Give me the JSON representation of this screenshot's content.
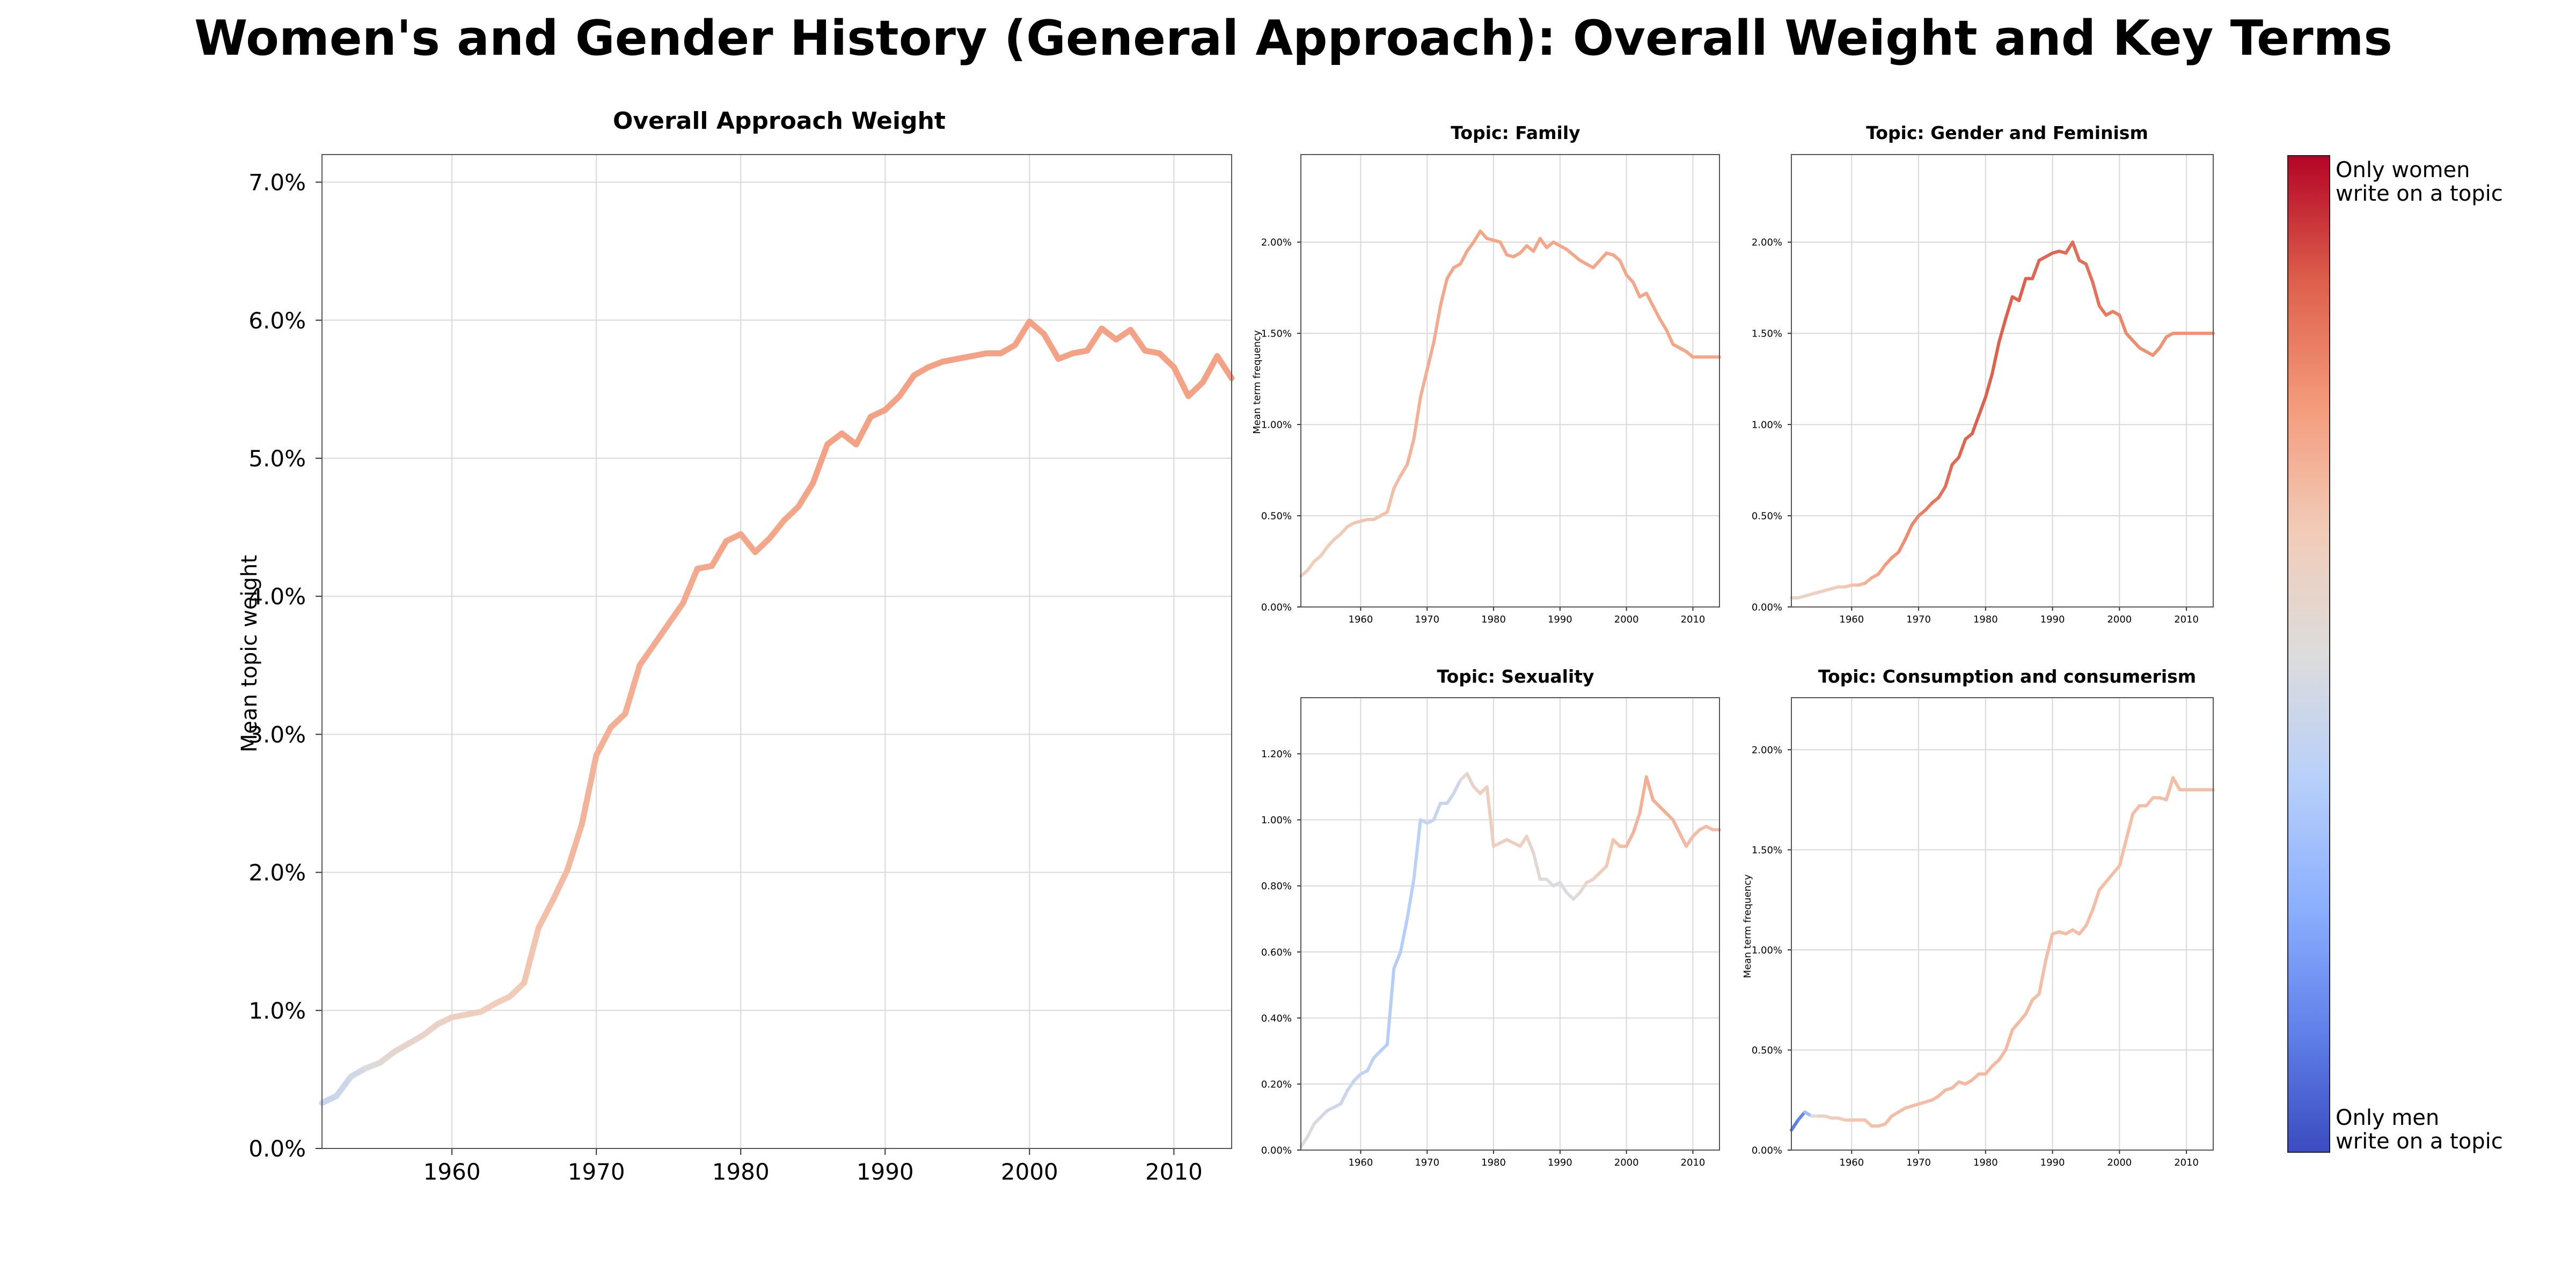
{
  "figure_title": "Women's and Gender History (General Approach): Overall Weight and Key Terms",
  "colorbar": {
    "top_label_line1": "Only women",
    "top_label_line2": "write on a topic",
    "bottom_label_line1": "Only men",
    "bottom_label_line2": "write on a topic",
    "colors": [
      "#b40426",
      "#dd5f4b",
      "#f49a7b",
      "#f2cbb7",
      "#dddcdc",
      "#b8d0f9",
      "#8db0fe",
      "#6282ea",
      "#3b4cc0"
    ]
  },
  "chart_data": [
    {
      "type": "line",
      "title": "Overall Approach Weight",
      "ylabel": "Mean topic weight",
      "xlabel": "",
      "xlim": [
        1951,
        2014
      ],
      "ylim": [
        0,
        7.2
      ],
      "xticks": [
        1960,
        1970,
        1980,
        1990,
        2000,
        2010
      ],
      "yticks": [
        {
          "v": 0,
          "label": "0.0%"
        },
        {
          "v": 1,
          "label": "1.0%"
        },
        {
          "v": 2,
          "label": "2.0%"
        },
        {
          "v": 3,
          "label": "3.0%"
        },
        {
          "v": 4,
          "label": "4.0%"
        },
        {
          "v": 5,
          "label": "5.0%"
        },
        {
          "v": 6,
          "label": "6.0%"
        },
        {
          "v": 7,
          "label": "7.0%"
        }
      ],
      "grid": true,
      "color_scale": [
        0,
        1
      ],
      "x": [
        1951,
        1952,
        1953,
        1954,
        1955,
        1956,
        1957,
        1958,
        1959,
        1960,
        1961,
        1962,
        1963,
        1964,
        1965,
        1966,
        1967,
        1968,
        1969,
        1970,
        1971,
        1972,
        1973,
        1974,
        1975,
        1976,
        1977,
        1978,
        1979,
        1980,
        1981,
        1982,
        1983,
        1984,
        1985,
        1986,
        1987,
        1988,
        1989,
        1990,
        1991,
        1992,
        1993,
        1994,
        1995,
        1996,
        1997,
        1998,
        1999,
        2000,
        2001,
        2002,
        2003,
        2004,
        2005,
        2006,
        2007,
        2008,
        2009,
        2010,
        2011,
        2012,
        2013,
        2014
      ],
      "y": [
        0.33,
        0.38,
        0.52,
        0.58,
        0.62,
        0.7,
        0.76,
        0.82,
        0.9,
        0.95,
        0.97,
        0.99,
        1.05,
        1.1,
        1.2,
        1.6,
        1.8,
        2.02,
        2.35,
        2.85,
        3.05,
        3.15,
        3.5,
        3.65,
        3.8,
        3.95,
        4.2,
        4.22,
        4.4,
        4.45,
        4.32,
        4.42,
        4.55,
        4.65,
        4.82,
        5.1,
        5.18,
        5.1,
        5.3,
        5.35,
        5.45,
        5.6,
        5.66,
        5.7,
        5.72,
        5.74,
        5.76,
        5.76,
        5.82,
        5.99,
        5.9,
        5.72,
        5.76,
        5.78,
        5.94,
        5.86,
        5.93,
        5.78,
        5.76,
        5.66,
        5.45,
        5.55,
        5.74,
        5.58
      ],
      "c": [
        0.42,
        0.43,
        0.45,
        0.47,
        0.52,
        0.55,
        0.56,
        0.57,
        0.58,
        0.59,
        0.6,
        0.6,
        0.61,
        0.62,
        0.63,
        0.65,
        0.66,
        0.67,
        0.68,
        0.69,
        0.7,
        0.7,
        0.7,
        0.71,
        0.71,
        0.71,
        0.71,
        0.72,
        0.72,
        0.72,
        0.72,
        0.72,
        0.72,
        0.72,
        0.73,
        0.73,
        0.73,
        0.73,
        0.73,
        0.73,
        0.73,
        0.73,
        0.73,
        0.73,
        0.73,
        0.73,
        0.73,
        0.73,
        0.73,
        0.73,
        0.73,
        0.73,
        0.73,
        0.73,
        0.73,
        0.73,
        0.73,
        0.73,
        0.73,
        0.73,
        0.73,
        0.73,
        0.73,
        0.73
      ]
    },
    {
      "type": "line",
      "title": "Topic: Family",
      "ylabel": "Mean term frequency",
      "xlabel": "",
      "xlim": [
        1951,
        2014
      ],
      "ylim": [
        0,
        2.48
      ],
      "xticks": [
        1960,
        1970,
        1980,
        1990,
        2000,
        2010
      ],
      "yticks": [
        {
          "v": 0,
          "label": "0.00%"
        },
        {
          "v": 0.5,
          "label": "0.50%"
        },
        {
          "v": 1.0,
          "label": "1.00%"
        },
        {
          "v": 1.5,
          "label": "1.50%"
        },
        {
          "v": 2.0,
          "label": "2.00%"
        }
      ],
      "grid": true,
      "x": [
        1951,
        1952,
        1953,
        1954,
        1955,
        1956,
        1957,
        1958,
        1959,
        1960,
        1961,
        1962,
        1963,
        1964,
        1965,
        1966,
        1967,
        1968,
        1969,
        1970,
        1971,
        1972,
        1973,
        1974,
        1975,
        1976,
        1977,
        1978,
        1979,
        1980,
        1981,
        1982,
        1983,
        1984,
        1985,
        1986,
        1987,
        1988,
        1989,
        1990,
        1991,
        1992,
        1993,
        1994,
        1995,
        1996,
        1997,
        1998,
        1999,
        2000,
        2001,
        2002,
        2003,
        2004,
        2005,
        2006,
        2007,
        2008,
        2009,
        2010,
        2011,
        2012,
        2013,
        2014
      ],
      "y": [
        0.17,
        0.2,
        0.25,
        0.28,
        0.33,
        0.37,
        0.4,
        0.44,
        0.46,
        0.47,
        0.48,
        0.48,
        0.5,
        0.52,
        0.65,
        0.72,
        0.78,
        0.92,
        1.15,
        1.3,
        1.45,
        1.65,
        1.8,
        1.86,
        1.88,
        1.95,
        2.0,
        2.06,
        2.02,
        2.01,
        2.0,
        1.93,
        1.92,
        1.94,
        1.98,
        1.95,
        2.02,
        1.97,
        2.0,
        1.98,
        1.96,
        1.93,
        1.9,
        1.88,
        1.86,
        1.9,
        1.94,
        1.93,
        1.9,
        1.82,
        1.78,
        1.7,
        1.72,
        1.65,
        1.58,
        1.52,
        1.44,
        1.42,
        1.4,
        1.37,
        1.37,
        1.37,
        1.37,
        1.37
      ],
      "c": [
        0.6,
        0.6,
        0.61,
        0.61,
        0.62,
        0.62,
        0.63,
        0.63,
        0.63,
        0.64,
        0.64,
        0.64,
        0.65,
        0.65,
        0.66,
        0.67,
        0.68,
        0.69,
        0.7,
        0.7,
        0.71,
        0.71,
        0.72,
        0.72,
        0.72,
        0.72,
        0.72,
        0.72,
        0.72,
        0.72,
        0.72,
        0.72,
        0.72,
        0.72,
        0.72,
        0.72,
        0.72,
        0.72,
        0.72,
        0.72,
        0.72,
        0.72,
        0.72,
        0.72,
        0.72,
        0.72,
        0.72,
        0.72,
        0.72,
        0.72,
        0.72,
        0.72,
        0.72,
        0.72,
        0.72,
        0.72,
        0.72,
        0.72,
        0.72,
        0.72,
        0.72,
        0.72,
        0.72,
        0.72
      ]
    },
    {
      "type": "line",
      "title": "Topic: Gender and Feminism",
      "ylabel": "",
      "xlabel": "",
      "xlim": [
        1951,
        2014
      ],
      "ylim": [
        0,
        2.48
      ],
      "xticks": [
        1960,
        1970,
        1980,
        1990,
        2000,
        2010
      ],
      "yticks": [
        {
          "v": 0,
          "label": "0.00%"
        },
        {
          "v": 0.5,
          "label": "0.50%"
        },
        {
          "v": 1.0,
          "label": "1.00%"
        },
        {
          "v": 1.5,
          "label": "1.50%"
        },
        {
          "v": 2.0,
          "label": "2.00%"
        }
      ],
      "grid": true,
      "x": [
        1951,
        1952,
        1953,
        1954,
        1955,
        1956,
        1957,
        1958,
        1959,
        1960,
        1961,
        1962,
        1963,
        1964,
        1965,
        1966,
        1967,
        1968,
        1969,
        1970,
        1971,
        1972,
        1973,
        1974,
        1975,
        1976,
        1977,
        1978,
        1979,
        1980,
        1981,
        1982,
        1983,
        1984,
        1985,
        1986,
        1987,
        1988,
        1989,
        1990,
        1991,
        1992,
        1993,
        1994,
        1995,
        1996,
        1997,
        1998,
        1999,
        2000,
        2001,
        2002,
        2003,
        2004,
        2005,
        2006,
        2007,
        2008,
        2009,
        2010,
        2011,
        2012,
        2013,
        2014
      ],
      "y": [
        0.05,
        0.05,
        0.06,
        0.07,
        0.08,
        0.09,
        0.1,
        0.11,
        0.11,
        0.12,
        0.12,
        0.13,
        0.16,
        0.18,
        0.23,
        0.27,
        0.3,
        0.37,
        0.45,
        0.5,
        0.53,
        0.57,
        0.6,
        0.66,
        0.78,
        0.82,
        0.92,
        0.95,
        1.05,
        1.15,
        1.28,
        1.45,
        1.58,
        1.7,
        1.68,
        1.8,
        1.8,
        1.9,
        1.92,
        1.94,
        1.95,
        1.94,
        2.0,
        1.9,
        1.88,
        1.78,
        1.65,
        1.6,
        1.62,
        1.6,
        1.5,
        1.46,
        1.42,
        1.4,
        1.38,
        1.42,
        1.48,
        1.5,
        1.5,
        1.5,
        1.5,
        1.5,
        1.5,
        1.5
      ],
      "c": [
        0.55,
        0.56,
        0.57,
        0.58,
        0.59,
        0.6,
        0.61,
        0.62,
        0.63,
        0.64,
        0.66,
        0.68,
        0.7,
        0.72,
        0.74,
        0.76,
        0.77,
        0.78,
        0.79,
        0.8,
        0.81,
        0.82,
        0.83,
        0.84,
        0.85,
        0.86,
        0.86,
        0.87,
        0.87,
        0.87,
        0.87,
        0.87,
        0.87,
        0.87,
        0.87,
        0.87,
        0.86,
        0.86,
        0.86,
        0.86,
        0.86,
        0.85,
        0.85,
        0.85,
        0.84,
        0.84,
        0.83,
        0.82,
        0.81,
        0.8,
        0.79,
        0.78,
        0.78,
        0.77,
        0.77,
        0.77,
        0.77,
        0.77,
        0.77,
        0.77,
        0.77,
        0.77,
        0.77,
        0.77
      ]
    },
    {
      "type": "line",
      "title": "Topic: Sexuality",
      "ylabel": "",
      "xlabel": "",
      "xlim": [
        1951,
        2014
      ],
      "ylim": [
        0,
        1.37
      ],
      "xticks": [
        1960,
        1970,
        1980,
        1990,
        2000,
        2010
      ],
      "yticks": [
        {
          "v": 0,
          "label": "0.00%"
        },
        {
          "v": 0.2,
          "label": "0.20%"
        },
        {
          "v": 0.4,
          "label": "0.40%"
        },
        {
          "v": 0.6,
          "label": "0.60%"
        },
        {
          "v": 0.8,
          "label": "0.80%"
        },
        {
          "v": 1.0,
          "label": "1.00%"
        },
        {
          "v": 1.2,
          "label": "1.20%"
        }
      ],
      "grid": true,
      "x": [
        1951,
        1952,
        1953,
        1954,
        1955,
        1956,
        1957,
        1958,
        1959,
        1960,
        1961,
        1962,
        1963,
        1964,
        1965,
        1966,
        1967,
        1968,
        1969,
        1970,
        1971,
        1972,
        1973,
        1974,
        1975,
        1976,
        1977,
        1978,
        1979,
        1980,
        1981,
        1982,
        1983,
        1984,
        1985,
        1986,
        1987,
        1988,
        1989,
        1990,
        1991,
        1992,
        1993,
        1994,
        1995,
        1996,
        1997,
        1998,
        1999,
        2000,
        2001,
        2002,
        2003,
        2004,
        2005,
        2006,
        2007,
        2008,
        2009,
        2010,
        2011,
        2012,
        2013,
        2014
      ],
      "y": [
        0.01,
        0.04,
        0.08,
        0.1,
        0.12,
        0.13,
        0.14,
        0.18,
        0.21,
        0.23,
        0.24,
        0.28,
        0.3,
        0.32,
        0.55,
        0.6,
        0.7,
        0.82,
        1.0,
        0.99,
        1.0,
        1.05,
        1.05,
        1.08,
        1.12,
        1.14,
        1.1,
        1.08,
        1.1,
        0.92,
        0.93,
        0.94,
        0.93,
        0.92,
        0.95,
        0.9,
        0.82,
        0.82,
        0.8,
        0.81,
        0.78,
        0.76,
        0.78,
        0.81,
        0.82,
        0.84,
        0.86,
        0.94,
        0.92,
        0.92,
        0.96,
        1.02,
        1.13,
        1.06,
        1.04,
        1.02,
        1.0,
        0.96,
        0.92,
        0.95,
        0.97,
        0.98,
        0.97,
        0.97
      ],
      "c": [
        0.52,
        0.5,
        0.49,
        0.47,
        0.46,
        0.45,
        0.44,
        0.43,
        0.42,
        0.41,
        0.4,
        0.39,
        0.38,
        0.37,
        0.36,
        0.36,
        0.37,
        0.38,
        0.4,
        0.41,
        0.42,
        0.42,
        0.42,
        0.42,
        0.48,
        0.55,
        0.58,
        0.6,
        0.6,
        0.6,
        0.6,
        0.6,
        0.6,
        0.6,
        0.58,
        0.55,
        0.52,
        0.5,
        0.49,
        0.49,
        0.49,
        0.5,
        0.52,
        0.55,
        0.58,
        0.6,
        0.62,
        0.64,
        0.65,
        0.67,
        0.68,
        0.69,
        0.7,
        0.7,
        0.7,
        0.7,
        0.69,
        0.68,
        0.67,
        0.66,
        0.66,
        0.66,
        0.66,
        0.66
      ]
    },
    {
      "type": "line",
      "title": "Topic: Consumption and consumerism",
      "ylabel": "Mean term frequency",
      "xlabel": "",
      "xlim": [
        1951,
        2014
      ],
      "ylim": [
        0,
        2.26
      ],
      "xticks": [
        1960,
        1970,
        1980,
        1990,
        2000,
        2010
      ],
      "yticks": [
        {
          "v": 0,
          "label": "0.00%"
        },
        {
          "v": 0.5,
          "label": "0.50%"
        },
        {
          "v": 1.0,
          "label": "1.00%"
        },
        {
          "v": 1.5,
          "label": "1.50%"
        },
        {
          "v": 2.0,
          "label": "2.00%"
        }
      ],
      "grid": true,
      "x": [
        1951,
        1952,
        1953,
        1954,
        1955,
        1956,
        1957,
        1958,
        1959,
        1960,
        1961,
        1962,
        1963,
        1964,
        1965,
        1966,
        1967,
        1968,
        1969,
        1970,
        1971,
        1972,
        1973,
        1974,
        1975,
        1976,
        1977,
        1978,
        1979,
        1980,
        1981,
        1982,
        1983,
        1984,
        1985,
        1986,
        1987,
        1988,
        1989,
        1990,
        1991,
        1992,
        1993,
        1994,
        1995,
        1996,
        1997,
        1998,
        1999,
        2000,
        2001,
        2002,
        2003,
        2004,
        2005,
        2006,
        2007,
        2008,
        2009,
        2010,
        2011,
        2012,
        2013,
        2014
      ],
      "y": [
        0.1,
        0.15,
        0.19,
        0.17,
        0.17,
        0.17,
        0.16,
        0.16,
        0.15,
        0.15,
        0.15,
        0.15,
        0.12,
        0.12,
        0.13,
        0.17,
        0.19,
        0.21,
        0.22,
        0.23,
        0.24,
        0.25,
        0.27,
        0.3,
        0.31,
        0.34,
        0.33,
        0.35,
        0.38,
        0.38,
        0.42,
        0.45,
        0.5,
        0.6,
        0.64,
        0.68,
        0.75,
        0.78,
        0.95,
        1.08,
        1.09,
        1.08,
        1.1,
        1.08,
        1.12,
        1.2,
        1.3,
        1.34,
        1.38,
        1.42,
        1.55,
        1.68,
        1.72,
        1.72,
        1.76,
        1.76,
        1.75,
        1.86,
        1.8,
        1.8,
        1.8,
        1.8,
        1.8,
        1.8
      ],
      "c": [
        0.1,
        0.12,
        0.15,
        0.45,
        0.58,
        0.6,
        0.61,
        0.62,
        0.63,
        0.63,
        0.64,
        0.64,
        0.65,
        0.66,
        0.66,
        0.66,
        0.66,
        0.66,
        0.66,
        0.66,
        0.66,
        0.66,
        0.67,
        0.67,
        0.67,
        0.67,
        0.67,
        0.67,
        0.67,
        0.67,
        0.67,
        0.67,
        0.67,
        0.67,
        0.67,
        0.67,
        0.66,
        0.66,
        0.66,
        0.66,
        0.66,
        0.66,
        0.66,
        0.66,
        0.66,
        0.66,
        0.66,
        0.66,
        0.66,
        0.66,
        0.66,
        0.66,
        0.66,
        0.66,
        0.66,
        0.66,
        0.66,
        0.66,
        0.66,
        0.66,
        0.66,
        0.66,
        0.66,
        0.66
      ]
    }
  ]
}
